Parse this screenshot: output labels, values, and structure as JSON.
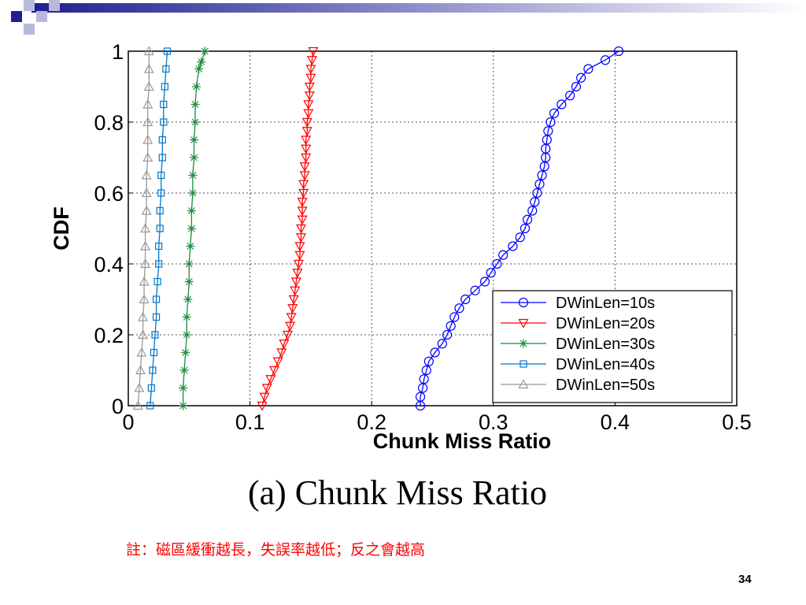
{
  "slide": {
    "caption": "(a) Chunk Miss Ratio",
    "note": "註：磁區緩衝越長，失誤率越低；反之會越高",
    "page_number": "34"
  },
  "colors": {
    "header_bar_dark": "#1f1f8f",
    "deco_square_dark": "#1f1f8f",
    "deco_square_light": "#b9b9dc"
  },
  "chart_data": {
    "type": "line",
    "title": "",
    "xlabel": "Chunk Miss Ratio",
    "ylabel": "CDF",
    "xlim": [
      0,
      0.5
    ],
    "ylim": [
      0,
      1
    ],
    "xticks": [
      "0",
      "0.1",
      "0.2",
      "0.3",
      "0.4",
      "0.5"
    ],
    "yticks": [
      "0",
      "0.2",
      "0.4",
      "0.6",
      "0.8",
      "1"
    ],
    "grid": true,
    "legend_position": "bottom-right",
    "series": [
      {
        "name": "DWinLen=10s",
        "color": "#0000ff",
        "marker": "circle",
        "points": [
          [
            0.24,
            0.0
          ],
          [
            0.24,
            0.025
          ],
          [
            0.242,
            0.05
          ],
          [
            0.243,
            0.075
          ],
          [
            0.245,
            0.1
          ],
          [
            0.247,
            0.125
          ],
          [
            0.252,
            0.15
          ],
          [
            0.258,
            0.175
          ],
          [
            0.262,
            0.2
          ],
          [
            0.265,
            0.225
          ],
          [
            0.268,
            0.25
          ],
          [
            0.272,
            0.275
          ],
          [
            0.277,
            0.3
          ],
          [
            0.285,
            0.325
          ],
          [
            0.293,
            0.35
          ],
          [
            0.298,
            0.375
          ],
          [
            0.303,
            0.4
          ],
          [
            0.308,
            0.425
          ],
          [
            0.316,
            0.45
          ],
          [
            0.322,
            0.475
          ],
          [
            0.326,
            0.5
          ],
          [
            0.328,
            0.525
          ],
          [
            0.332,
            0.55
          ],
          [
            0.334,
            0.575
          ],
          [
            0.336,
            0.6
          ],
          [
            0.338,
            0.625
          ],
          [
            0.34,
            0.65
          ],
          [
            0.342,
            0.675
          ],
          [
            0.343,
            0.7
          ],
          [
            0.343,
            0.725
          ],
          [
            0.344,
            0.75
          ],
          [
            0.345,
            0.775
          ],
          [
            0.347,
            0.8
          ],
          [
            0.35,
            0.825
          ],
          [
            0.356,
            0.85
          ],
          [
            0.363,
            0.875
          ],
          [
            0.368,
            0.9
          ],
          [
            0.372,
            0.925
          ],
          [
            0.378,
            0.95
          ],
          [
            0.392,
            0.975
          ],
          [
            0.403,
            1.0
          ]
        ]
      },
      {
        "name": "DWinLen=20s",
        "color": "#ff0000",
        "marker": "triangle-down",
        "points": [
          [
            0.11,
            0.0
          ],
          [
            0.112,
            0.025
          ],
          [
            0.114,
            0.05
          ],
          [
            0.117,
            0.075
          ],
          [
            0.12,
            0.1
          ],
          [
            0.123,
            0.125
          ],
          [
            0.126,
            0.15
          ],
          [
            0.128,
            0.175
          ],
          [
            0.131,
            0.2
          ],
          [
            0.133,
            0.225
          ],
          [
            0.134,
            0.25
          ],
          [
            0.135,
            0.275
          ],
          [
            0.136,
            0.3
          ],
          [
            0.137,
            0.325
          ],
          [
            0.138,
            0.35
          ],
          [
            0.139,
            0.375
          ],
          [
            0.14,
            0.4
          ],
          [
            0.141,
            0.425
          ],
          [
            0.141,
            0.45
          ],
          [
            0.142,
            0.475
          ],
          [
            0.142,
            0.5
          ],
          [
            0.143,
            0.525
          ],
          [
            0.143,
            0.55
          ],
          [
            0.143,
            0.575
          ],
          [
            0.144,
            0.6
          ],
          [
            0.144,
            0.625
          ],
          [
            0.145,
            0.65
          ],
          [
            0.145,
            0.675
          ],
          [
            0.146,
            0.7
          ],
          [
            0.146,
            0.725
          ],
          [
            0.146,
            0.75
          ],
          [
            0.147,
            0.775
          ],
          [
            0.147,
            0.8
          ],
          [
            0.148,
            0.825
          ],
          [
            0.148,
            0.85
          ],
          [
            0.149,
            0.875
          ],
          [
            0.149,
            0.9
          ],
          [
            0.15,
            0.925
          ],
          [
            0.15,
            0.95
          ],
          [
            0.151,
            0.975
          ],
          [
            0.152,
            1.0
          ]
        ]
      },
      {
        "name": "DWinLen=30s",
        "color": "#1e8c3c",
        "marker": "star",
        "points": [
          [
            0.045,
            0.0
          ],
          [
            0.045,
            0.05
          ],
          [
            0.046,
            0.1
          ],
          [
            0.047,
            0.15
          ],
          [
            0.048,
            0.2
          ],
          [
            0.048,
            0.25
          ],
          [
            0.049,
            0.3
          ],
          [
            0.05,
            0.35
          ],
          [
            0.05,
            0.4
          ],
          [
            0.051,
            0.45
          ],
          [
            0.052,
            0.5
          ],
          [
            0.052,
            0.55
          ],
          [
            0.053,
            0.6
          ],
          [
            0.053,
            0.65
          ],
          [
            0.054,
            0.7
          ],
          [
            0.054,
            0.75
          ],
          [
            0.055,
            0.8
          ],
          [
            0.055,
            0.85
          ],
          [
            0.056,
            0.9
          ],
          [
            0.058,
            0.95
          ],
          [
            0.06,
            0.97
          ],
          [
            0.063,
            1.0
          ]
        ]
      },
      {
        "name": "DWinLen=40s",
        "color": "#0077cc",
        "marker": "square",
        "points": [
          [
            0.018,
            0.0
          ],
          [
            0.019,
            0.05
          ],
          [
            0.02,
            0.1
          ],
          [
            0.021,
            0.15
          ],
          [
            0.022,
            0.2
          ],
          [
            0.023,
            0.25
          ],
          [
            0.023,
            0.3
          ],
          [
            0.024,
            0.35
          ],
          [
            0.025,
            0.4
          ],
          [
            0.025,
            0.45
          ],
          [
            0.026,
            0.5
          ],
          [
            0.026,
            0.55
          ],
          [
            0.027,
            0.6
          ],
          [
            0.027,
            0.65
          ],
          [
            0.028,
            0.7
          ],
          [
            0.028,
            0.75
          ],
          [
            0.029,
            0.8
          ],
          [
            0.029,
            0.85
          ],
          [
            0.03,
            0.9
          ],
          [
            0.031,
            0.95
          ],
          [
            0.032,
            1.0
          ]
        ]
      },
      {
        "name": "DWinLen=50s",
        "color": "#999999",
        "marker": "triangle-up",
        "points": [
          [
            0.008,
            0.0
          ],
          [
            0.009,
            0.05
          ],
          [
            0.01,
            0.1
          ],
          [
            0.011,
            0.15
          ],
          [
            0.012,
            0.2
          ],
          [
            0.012,
            0.25
          ],
          [
            0.013,
            0.3
          ],
          [
            0.013,
            0.35
          ],
          [
            0.014,
            0.4
          ],
          [
            0.014,
            0.45
          ],
          [
            0.014,
            0.5
          ],
          [
            0.015,
            0.55
          ],
          [
            0.015,
            0.6
          ],
          [
            0.015,
            0.65
          ],
          [
            0.016,
            0.7
          ],
          [
            0.016,
            0.75
          ],
          [
            0.016,
            0.8
          ],
          [
            0.016,
            0.85
          ],
          [
            0.017,
            0.9
          ],
          [
            0.017,
            0.95
          ],
          [
            0.017,
            1.0
          ]
        ]
      }
    ]
  }
}
